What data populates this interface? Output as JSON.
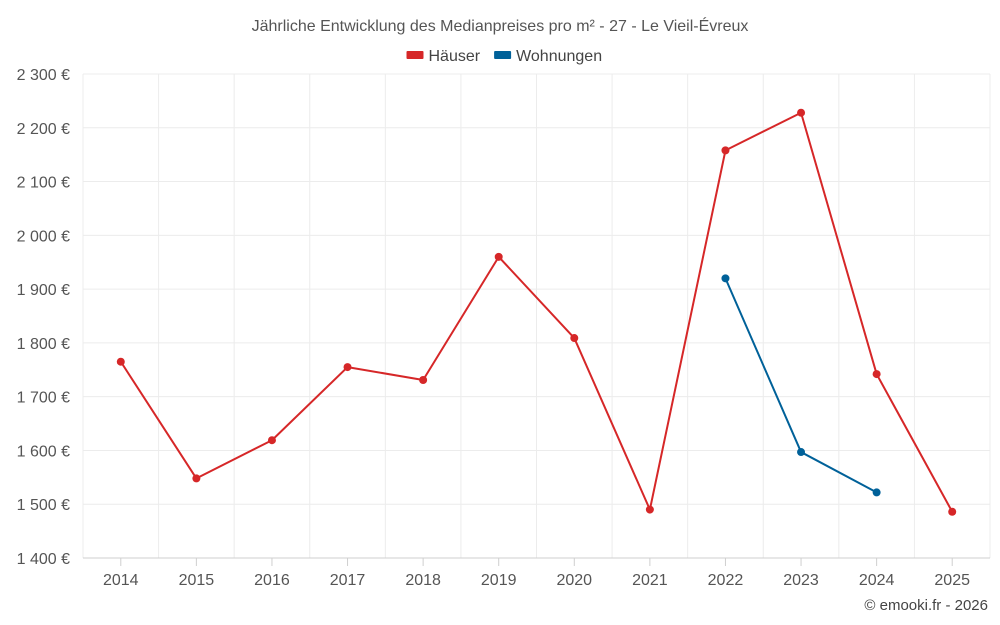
{
  "chart_data": {
    "type": "line",
    "title": "Jährliche Entwicklung des Medianpreises pro m² - 27 - Le Vieil-Évreux",
    "categories": [
      "2014",
      "2015",
      "2016",
      "2017",
      "2018",
      "2019",
      "2020",
      "2021",
      "2022",
      "2023",
      "2024",
      "2025"
    ],
    "series": [
      {
        "name": "Häuser",
        "color": "#d62728",
        "values": [
          1765,
          1548,
          1619,
          1755,
          1731,
          1960,
          1809,
          1490,
          2158,
          2228,
          1742,
          1486
        ]
      },
      {
        "name": "Wohnungen",
        "color": "#006199",
        "values": [
          null,
          null,
          null,
          null,
          null,
          null,
          null,
          null,
          1920,
          1597,
          1522,
          null
        ]
      }
    ],
    "ylim": [
      1400,
      2300
    ],
    "yticks": [
      1400,
      1500,
      1600,
      1700,
      1800,
      1900,
      2000,
      2100,
      2200,
      2300
    ],
    "ytick_labels": [
      "1 400 €",
      "1 500 €",
      "1 600 €",
      "1 700 €",
      "1 800 €",
      "1 900 €",
      "2 000 €",
      "2 100 €",
      "2 200 €",
      "2 300 €"
    ],
    "xlabel": "",
    "ylabel": "",
    "legend_position": "top-center",
    "grid": true
  },
  "credit": "© emooki.fr - 2026"
}
